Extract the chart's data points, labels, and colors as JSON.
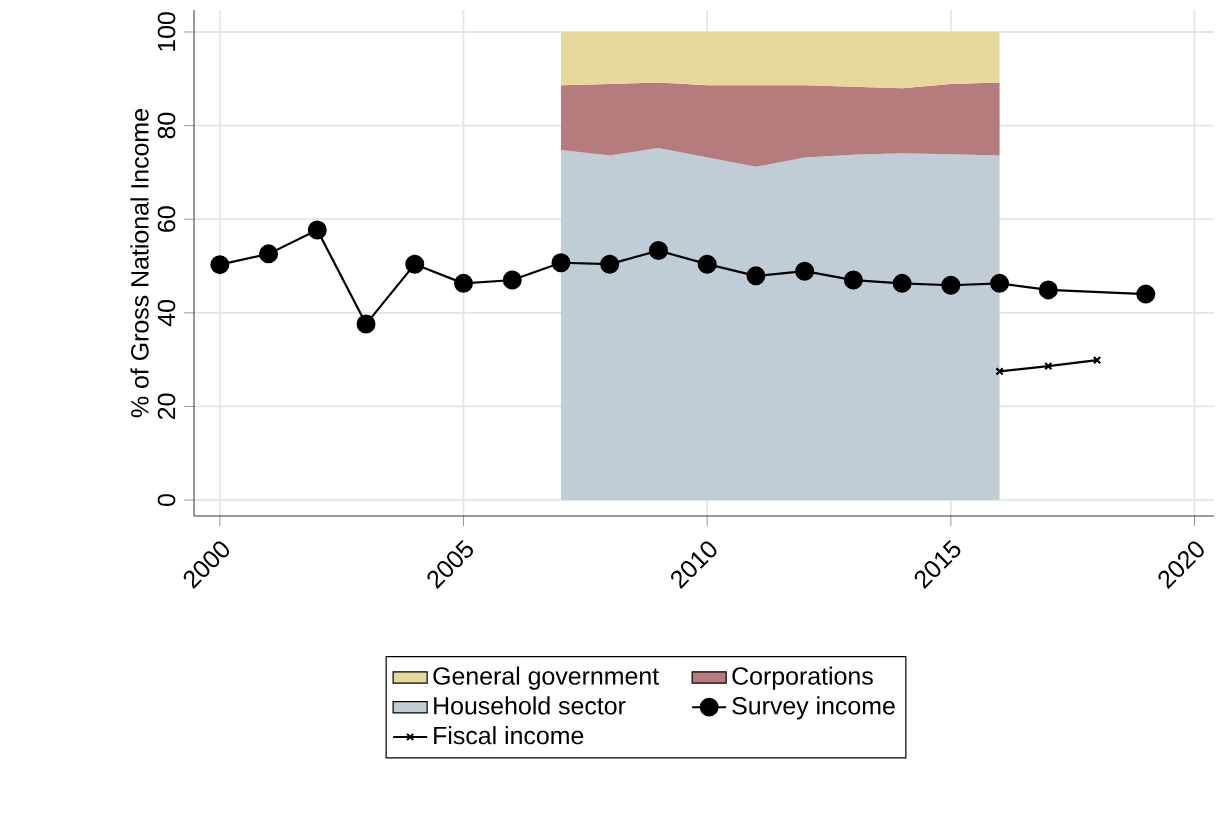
{
  "chart_data": {
    "type": "area",
    "ylabel": "% of Gross National Income",
    "stacked": true,
    "xlim": [
      1999.47,
      2020.4
    ],
    "ylim": [
      -3.4,
      104.7
    ],
    "xticks": [
      2000,
      2005,
      2010,
      2015,
      2020
    ],
    "yticks": [
      0,
      20,
      40,
      60,
      80,
      100
    ],
    "grid": true,
    "legend": "bottom",
    "series": [
      {
        "name": "Household sector",
        "color": "#c1cdd5",
        "x": [
          2007,
          2008,
          2009,
          2010,
          2011,
          2012,
          2013,
          2014,
          2015,
          2016
        ],
        "values": [
          74.8,
          73.6,
          75.2,
          73.2,
          71.2,
          73.2,
          73.8,
          74.1,
          73.9,
          73.6
        ]
      },
      {
        "name": "Corporations",
        "color": "#b67b7d",
        "x": [
          2007,
          2008,
          2009,
          2010,
          2011,
          2012,
          2013,
          2014,
          2015,
          2016
        ],
        "values": [
          13.8,
          15.3,
          14.0,
          15.4,
          17.4,
          15.4,
          14.5,
          13.9,
          15.0,
          15.6
        ]
      },
      {
        "name": "General government",
        "color": "#e6d79a",
        "x": [
          2007,
          2008,
          2009,
          2010,
          2011,
          2012,
          2013,
          2014,
          2015,
          2016
        ],
        "values": [
          11.4,
          11.1,
          10.8,
          11.4,
          11.4,
          11.4,
          11.7,
          12.0,
          11.1,
          10.8
        ]
      },
      {
        "name": "Survey income",
        "type": "line",
        "marker": "circle",
        "color": "#000000",
        "x": [
          2000,
          2001,
          2002,
          2003,
          2004,
          2005,
          2006,
          2007,
          2008,
          2009,
          2010,
          2011,
          2012,
          2013,
          2014,
          2015,
          2016,
          2017,
          2019
        ],
        "values": [
          50.3,
          52.6,
          57.7,
          37.6,
          50.4,
          46.3,
          47.0,
          50.7,
          50.4,
          53.3,
          50.4,
          47.9,
          48.9,
          47.0,
          46.3,
          45.9,
          46.3,
          44.9,
          44.0
        ]
      },
      {
        "name": "Fiscal income",
        "type": "line",
        "marker": "cross",
        "color": "#000000",
        "x": [
          2016,
          2017,
          2018
        ],
        "values": [
          27.5,
          28.6,
          29.9
        ]
      }
    ]
  }
}
